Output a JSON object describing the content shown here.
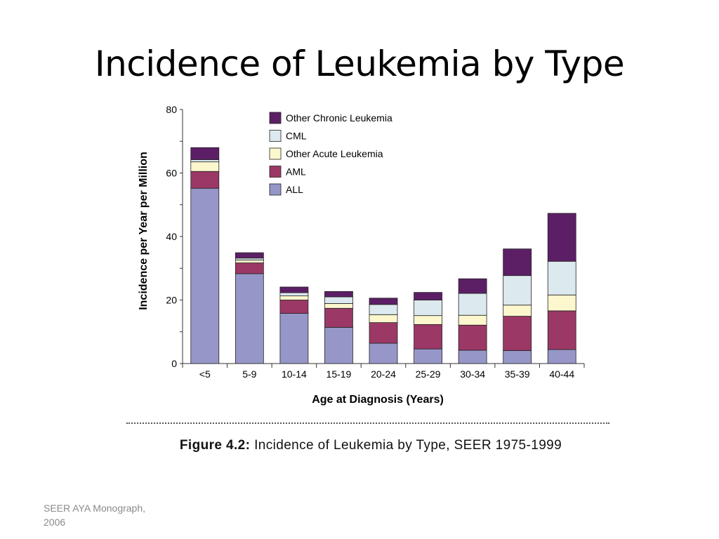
{
  "slide": {
    "title": "Incidence of Leukemia by Type",
    "caption_label": "Figure 4.2:",
    "caption_text": "Incidence of Leukemia by Type, SEER 1975-1999",
    "source_line1": "SEER AYA Monograph,",
    "source_line2": "2006"
  },
  "chart_data": {
    "type": "bar",
    "stacked": true,
    "xlabel": "Age at Diagnosis (Years)",
    "ylabel": "Incidence per Year per Million",
    "ylim": [
      0,
      80
    ],
    "yticks": [
      0,
      20,
      40,
      60,
      80
    ],
    "categories": [
      "<5",
      "5-9",
      "10-14",
      "15-19",
      "20-24",
      "25-29",
      "30-34",
      "35-39",
      "40-44"
    ],
    "legend_position": "top-center",
    "series": [
      {
        "name": "ALL",
        "color": "#9696c8",
        "values": [
          55.2,
          28.3,
          15.8,
          11.4,
          6.4,
          4.6,
          4.2,
          4.1,
          4.4
        ]
      },
      {
        "name": "AML",
        "color": "#9c3866",
        "values": [
          5.3,
          3.4,
          4.2,
          6.0,
          6.5,
          7.7,
          7.9,
          10.8,
          12.2
        ]
      },
      {
        "name": "Other Acute Leukemia",
        "color": "#fdf7ce",
        "values": [
          3.0,
          0.9,
          1.3,
          1.5,
          2.5,
          2.8,
          3.1,
          3.5,
          5.0
        ]
      },
      {
        "name": "CML",
        "color": "#dce9ee",
        "values": [
          0.7,
          0.6,
          1.0,
          2.1,
          3.2,
          4.9,
          6.9,
          9.3,
          10.6
        ]
      },
      {
        "name": "Other Chronic Leukemia",
        "color": "#5c1f66",
        "values": [
          3.8,
          1.7,
          1.8,
          1.7,
          2.0,
          2.4,
          4.6,
          8.4,
          15.1
        ]
      }
    ],
    "legend_order": [
      "Other Chronic Leukemia",
      "CML",
      "Other Acute Leukemia",
      "AML",
      "ALL"
    ]
  }
}
